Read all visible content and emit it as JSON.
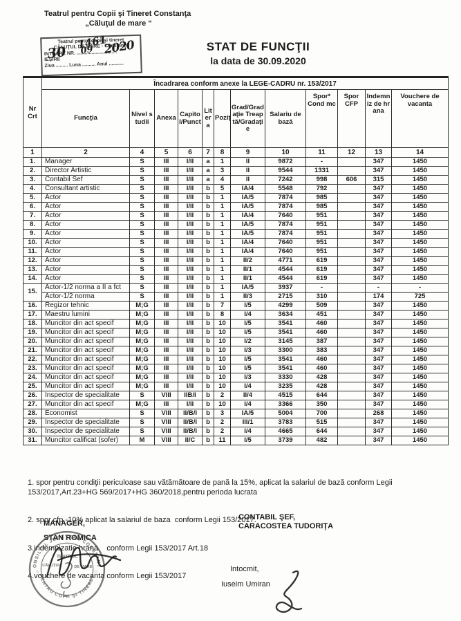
{
  "page": {
    "institution": {
      "line1": "Teatrul pentru Copii şi Tineret Constanţa",
      "line2": "„Căluţul de mare “"
    },
    "entry_stamp": {
      "line1": "Teatrul pentru copii şi tineret",
      "line2": "CĂLUŢUL DE MARE - Constanţa",
      "intrare_line": "INTRARE  NR. ..............................",
      "iesire": "IEŞIRE",
      "ziua_line": "Ziua ......... Luna .......... Anul ...........",
      "nr_value": "1461",
      "ziua_value": "30",
      "luna_value": "09",
      "anul_value": "2020"
    },
    "title": {
      "line1": "STAT DE FUNCŢII",
      "line2": "la data de 30.09.2020"
    }
  },
  "table": {
    "span_header": "Încadrarea conform anexe la LEGE-CADRU nr. 153/2017",
    "columns": [
      {
        "label": "Nr Crt",
        "num": "1"
      },
      {
        "label": "Funcţia",
        "num": "2"
      },
      {
        "label": "Nivel studii",
        "num": "4"
      },
      {
        "label": "Anexa",
        "num": "5"
      },
      {
        "label": "Capitol/Punct",
        "num": "6"
      },
      {
        "label": "Litera",
        "num": "7"
      },
      {
        "label": "Poziţia",
        "num": "8"
      },
      {
        "label": "Grad/Gradaţie Treaptă/Gradaţie",
        "num": "9"
      },
      {
        "label": "Salariu de bază",
        "num": "10"
      },
      {
        "label": "Spor* Cond mc",
        "num": "11"
      },
      {
        "label": "Spor CFP",
        "num": "12"
      },
      {
        "label": "Indemniz de hrana",
        "num": "13"
      },
      {
        "label": "Vouchere de vacanta",
        "num": "14"
      }
    ],
    "rows": [
      {
        "c": [
          "1.",
          "Manager",
          "S",
          "III",
          "I/II",
          "a",
          "1",
          "II",
          "9872",
          "-",
          "",
          "347",
          "1450"
        ]
      },
      {
        "c": [
          "2.",
          "Director Artistic",
          "S",
          "III",
          "I/II",
          "a",
          "3",
          "II",
          "9544",
          "1331",
          "",
          "347",
          "1450"
        ]
      },
      {
        "c": [
          "3.",
          "Contabil Sef",
          "S",
          "III",
          "I/II",
          "a",
          "4",
          "II",
          "7242",
          "998",
          "606",
          "315",
          "1450"
        ]
      },
      {
        "c": [
          "4.",
          "Consultant artistic",
          "S",
          "III",
          "I/II",
          "b",
          "5",
          "IA/4",
          "5548",
          "792",
          "",
          "347",
          "1450"
        ]
      },
      {
        "c": [
          "5.",
          "Actor",
          "S",
          "III",
          "I/II",
          "b",
          "1",
          "IA/5",
          "7874",
          "985",
          "",
          "347",
          "1450"
        ]
      },
      {
        "c": [
          "6.",
          "Actor",
          "S",
          "III",
          "I/II",
          "b",
          "1",
          "IA/5",
          "7874",
          "985",
          "",
          "347",
          "1450"
        ]
      },
      {
        "c": [
          "7.",
          "Actor",
          "S",
          "III",
          "I/II",
          "b",
          "1",
          "IA/4",
          "7640",
          "951",
          "",
          "347",
          "1450"
        ]
      },
      {
        "c": [
          "8.",
          "Actor",
          "S",
          "III",
          "I/II",
          "b",
          "1",
          "IA/5",
          "7874",
          "951",
          "",
          "347",
          "1450"
        ]
      },
      {
        "c": [
          "9.",
          "Actor",
          "S",
          "III",
          "I/II",
          "b",
          "1",
          "IA/5",
          "7874",
          "951",
          "",
          "347",
          "1450"
        ]
      },
      {
        "c": [
          "10.",
          "Actor",
          "S",
          "III",
          "I/II",
          "b",
          "1",
          "IA/4",
          "7640",
          "951",
          "",
          "347",
          "1450"
        ]
      },
      {
        "c": [
          "11.",
          "Actor",
          "S",
          "III",
          "I/II",
          "b",
          "1",
          "IA/4",
          "7640",
          "951",
          "",
          "347",
          "1450"
        ]
      },
      {
        "c": [
          "12.",
          "Actor",
          "S",
          "III",
          "I/II",
          "b",
          "1",
          "II/2",
          "4771",
          "619",
          "",
          "347",
          "1450"
        ]
      },
      {
        "c": [
          "13.",
          "Actor",
          "S",
          "III",
          "I/II",
          "b",
          "1",
          "II/1",
          "4544",
          "619",
          "",
          "347",
          "1450"
        ]
      },
      {
        "c": [
          "14.",
          "Actor",
          "S",
          "III",
          "I/II",
          "b",
          "1",
          "II/1",
          "4544",
          "619",
          "",
          "347",
          "1450"
        ]
      },
      {
        "c": [
          "15.",
          "Actor-1/2 norma a II a fct",
          "S",
          "III",
          "I/II",
          "b",
          "1",
          "IA/5",
          "3937",
          "-",
          "",
          "-",
          "-"
        ],
        "span": 2
      },
      {
        "c": [
          null,
          "Actor-1/2 norma",
          "S",
          "III",
          "I/II",
          "b",
          "1",
          "II/3",
          "2715",
          "310",
          "",
          "174",
          "725"
        ]
      },
      {
        "c": [
          "16.",
          "Regizor tehnic",
          "M;G",
          "III",
          "I/II",
          "b",
          "7",
          "I/5",
          "4299",
          "509",
          "",
          "347",
          "1450"
        ]
      },
      {
        "c": [
          "17.",
          "Maestru lumini",
          "M;G",
          "III",
          "I/II",
          "b",
          "8",
          "I/4",
          "3634",
          "451",
          "",
          "347",
          "1450"
        ]
      },
      {
        "c": [
          "18.",
          "Muncitor din act specif",
          "M;G",
          "III",
          "I/II",
          "b",
          "10",
          "I/5",
          "3541",
          "460",
          "",
          "347",
          "1450"
        ]
      },
      {
        "c": [
          "19.",
          "Muncitor din act specif",
          "M;G",
          "III",
          "I/II",
          "b",
          "10",
          "I/5",
          "3541",
          "460",
          "",
          "347",
          "1450"
        ]
      },
      {
        "c": [
          "20.",
          "Muncitor din act specif",
          "M;G",
          "III",
          "I/II",
          "b",
          "10",
          "I/2",
          "3145",
          "387",
          "",
          "347",
          "1450"
        ]
      },
      {
        "c": [
          "21.",
          "Muncitor din act specif",
          "M;G",
          "III",
          "I/II",
          "b",
          "10",
          "I/3",
          "3300",
          "383",
          "",
          "347",
          "1450"
        ]
      },
      {
        "c": [
          "22.",
          "Muncitor din act specif",
          "M;G",
          "III",
          "I/II",
          "b",
          "10",
          "I/5",
          "3541",
          "460",
          "",
          "347",
          "1450"
        ]
      },
      {
        "c": [
          "23.",
          "Muncitor din act specif",
          "M;G",
          "III",
          "I/II",
          "b",
          "10",
          "I/5",
          "3541",
          "460",
          "",
          "347",
          "1450"
        ]
      },
      {
        "c": [
          "24.",
          "Muncitor din act specif",
          "M;G",
          "III",
          "I/II",
          "b",
          "10",
          "I/3",
          "3330",
          "428",
          "",
          "347",
          "1450"
        ]
      },
      {
        "c": [
          "25.",
          "Muncitor din act specif",
          "M;G",
          "III",
          "I/II",
          "b",
          "10",
          "I/4",
          "3235",
          "428",
          "",
          "347",
          "1450"
        ]
      },
      {
        "c": [
          "26.",
          "Inspector de specialitate",
          "S",
          "VIII",
          "IIB/I",
          "b",
          "2",
          "II/4",
          "4515",
          "644",
          "",
          "347",
          "1450"
        ]
      },
      {
        "c": [
          "27.",
          "Muncitor din act specif",
          "M;G",
          "III",
          "I/II",
          "b",
          "10",
          "I/4",
          "3366",
          "350",
          "",
          "347",
          "1450"
        ]
      },
      {
        "c": [
          "28.",
          "Economist",
          "S",
          "VIII",
          "II/B/I",
          "b",
          "3",
          "IA/5",
          "5004",
          "700",
          "",
          "268",
          "1450"
        ]
      },
      {
        "c": [
          "29.",
          "Inspector de specialitate",
          "S",
          "VIII",
          "II/B/I",
          "b",
          "2",
          "III/1",
          "3783",
          "515",
          "",
          "347",
          "1450"
        ]
      },
      {
        "c": [
          "30.",
          "Inspector de specialitate",
          "S",
          "VIII",
          "II/B/I",
          "b",
          "2",
          "I/4",
          "4665",
          "644",
          "",
          "347",
          "1450"
        ]
      },
      {
        "c": [
          "31.",
          "Muncitor calificat  (sofer)",
          "M",
          "VIII",
          "II/C",
          "b",
          "11",
          "I/5",
          "3739",
          "482",
          "",
          "347",
          "1450"
        ]
      }
    ]
  },
  "notes": [
    "1. spor pentru condiţii periculoase sau vătămătoare de pană la 15%, aplicat la salariul de bază conform Legii 153/2017,Art.23+HG 569/2017+HG 360/2018,pentru perioda lucrata",
    "2. spor cfp -10% aplicat la salariul de baza  conform Legii 153/2017.",
    "3.indemnizatie hrana    conform Legii 153/2017 Art.18",
    "4.vouchere de vacanta conform Legii 153/2017"
  ],
  "signatures": {
    "manager_label": "MANAGER,",
    "manager_name": "STAN ROMICA",
    "contabil_label": "CONTABIL ŞEF,",
    "contabil_name": "CARACOSTEA TUDORIŢA",
    "intocmit_label": "Intocmit,",
    "intocmit_name": "Iuseim Umiran"
  },
  "stamp": {
    "top_text": "CONSILIUL JUDEŢEAN CONSTANŢA",
    "bottom_text": "PENTRU COPII ŞI TINERET",
    "center_line1": "TEATRUL",
    "center_line2": "CĂLUŢUL",
    "center_line3": "DE MARE"
  },
  "colors": {
    "ink": "#1b1b1b",
    "paper": "#fdfdfb",
    "stamp_ink": "#474747"
  }
}
